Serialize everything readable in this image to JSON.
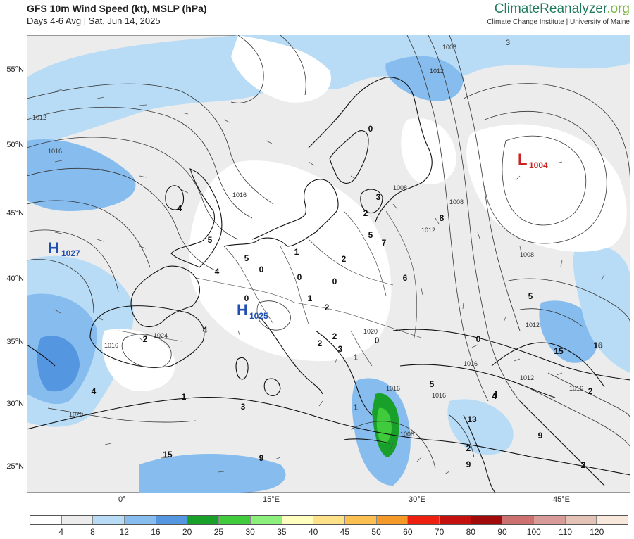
{
  "header": {
    "title": "GFS 10m Wind Speed (kt), MSLP (hPa)",
    "subtitle": "Days 4-6 Avg | Sat, Jun 14, 2025",
    "brand_main": "ClimateReanalyzer",
    "brand_org": ".org",
    "brand_sub": "Climate Change Institute | University of Maine"
  },
  "map": {
    "lat_labels": [
      "55°N",
      "50°N",
      "45°N",
      "40°N",
      "35°N",
      "30°N",
      "25°N"
    ],
    "lon_labels": [
      "0°",
      "15°E",
      "30°E",
      "45°E"
    ],
    "pressure_centers": [
      {
        "type": "H",
        "value": "1027",
        "color": "#1f4fb0"
      },
      {
        "type": "H",
        "value": "1025",
        "color": "#1f4fb0"
      },
      {
        "type": "L",
        "value": "1004",
        "color": "#cc2222"
      }
    ],
    "isobar_labels": [
      "1008",
      "1012",
      "1012",
      "1016",
      "1016",
      "1016",
      "1008",
      "1012",
      "1008",
      "1012",
      "1016",
      "1020",
      "1024",
      "1016",
      "1016",
      "1008",
      "1012",
      "1016",
      "1020",
      "1008",
      "3"
    ],
    "wind_values": [
      "4",
      "5",
      "4",
      "2",
      "1",
      "4",
      "0",
      "1",
      "2",
      "0",
      "0",
      "2",
      "1",
      "2",
      "5",
      "7",
      "6",
      "2",
      "0",
      "2",
      "3",
      "0",
      "1",
      "5",
      "8",
      "5",
      "0",
      "4",
      "15",
      "13",
      "9",
      "9",
      "2",
      "2",
      "1",
      "3",
      "15",
      "9",
      "5",
      "4",
      "16",
      "4",
      "2",
      "0",
      "3"
    ]
  },
  "colorbar": {
    "colors": [
      "#ffffff",
      "#ececec",
      "#b8dcf5",
      "#86bcee",
      "#5596e0",
      "#18a02a",
      "#3fcb3c",
      "#8cef7c",
      "#ffffc0",
      "#ffe18a",
      "#fbc050",
      "#f59a28",
      "#f02010",
      "#c51010",
      "#a00a0a",
      "#cc7070",
      "#d99a9a",
      "#e5c2b6",
      "#f8e8dc"
    ],
    "labels": [
      "4",
      "8",
      "12",
      "16",
      "20",
      "25",
      "30",
      "35",
      "40",
      "45",
      "50",
      "60",
      "70",
      "80",
      "90",
      "100",
      "110",
      "120"
    ]
  }
}
